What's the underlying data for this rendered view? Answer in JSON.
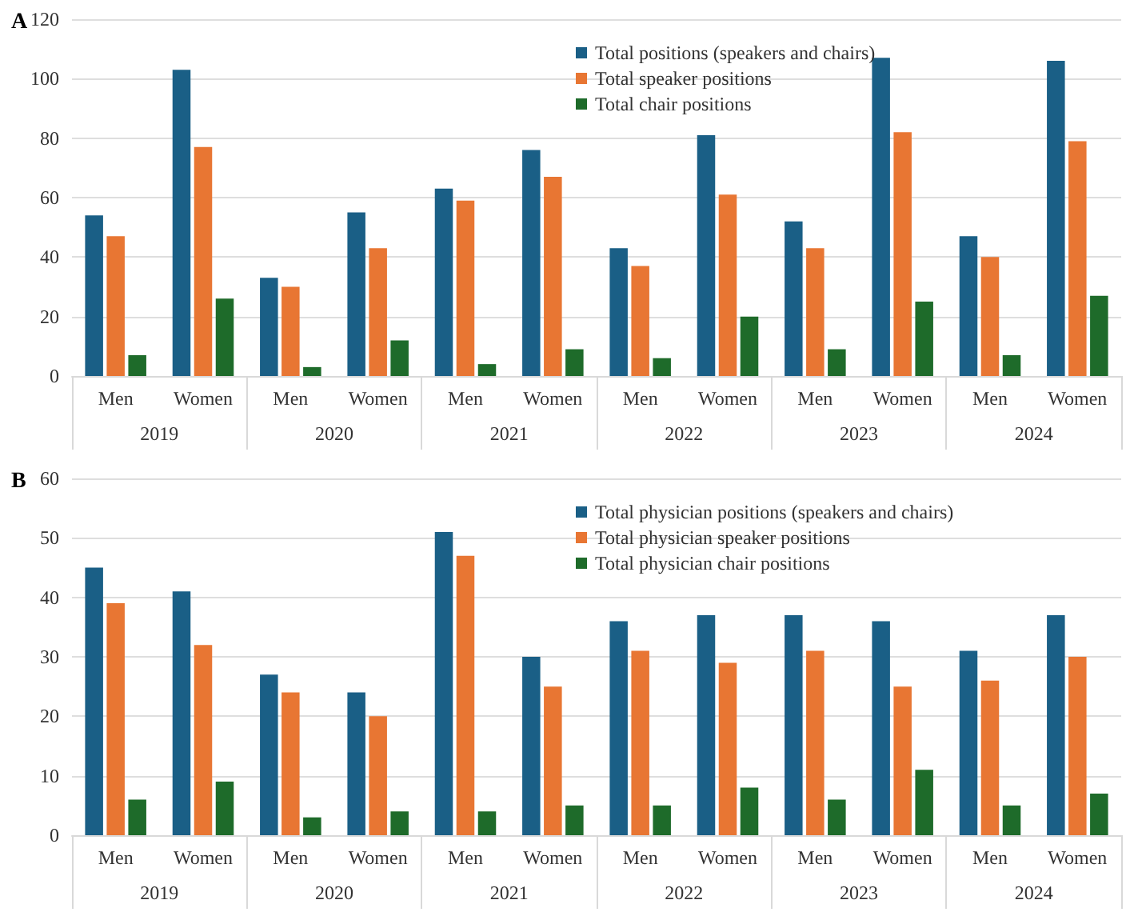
{
  "chart_data": [
    {
      "type": "bar",
      "title": "A",
      "categories": [
        "Men",
        "Women",
        "Men",
        "Women",
        "Men",
        "Women",
        "Men",
        "Women",
        "Men",
        "Women",
        "Men",
        "Women"
      ],
      "series": [
        {
          "name": "Total positions (speakers and chairs)",
          "color": "#1a5f86",
          "values": [
            54,
            103,
            33,
            55,
            63,
            76,
            43,
            81,
            52,
            107,
            47,
            106
          ]
        },
        {
          "name": "Total speaker positions",
          "color": "#e87633",
          "values": [
            47,
            77,
            30,
            43,
            59,
            67,
            37,
            61,
            43,
            82,
            40,
            79
          ]
        },
        {
          "name": "Total chair positions",
          "color": "#1e6b2a",
          "values": [
            7,
            26,
            3,
            12,
            4,
            9,
            6,
            20,
            9,
            25,
            7,
            27
          ]
        }
      ],
      "annotations": [
        "2019",
        "2020",
        "2021",
        "2022",
        "2023",
        "2024"
      ],
      "ylim": [
        0,
        120
      ],
      "yticks": [
        0,
        20,
        40,
        60,
        80,
        100,
        120
      ],
      "grid": "y",
      "legend": "top"
    },
    {
      "type": "bar",
      "title": "B",
      "categories": [
        "Men",
        "Women",
        "Men",
        "Women",
        "Men",
        "Women",
        "Men",
        "Women",
        "Men",
        "Women",
        "Men",
        "Women"
      ],
      "series": [
        {
          "name": "Total physician positions (speakers and chairs)",
          "color": "#1a5f86",
          "values": [
            45,
            41,
            27,
            24,
            51,
            30,
            36,
            37,
            37,
            36,
            31,
            37
          ]
        },
        {
          "name": "Total physician speaker positions",
          "color": "#e87633",
          "values": [
            39,
            32,
            24,
            20,
            47,
            25,
            31,
            29,
            31,
            25,
            26,
            30
          ]
        },
        {
          "name": "Total physician chair positions",
          "color": "#1e6b2a",
          "values": [
            6,
            9,
            3,
            4,
            4,
            5,
            5,
            8,
            6,
            11,
            5,
            7
          ]
        }
      ],
      "annotations": [
        "2019",
        "2020",
        "2021",
        "2022",
        "2023",
        "2024"
      ],
      "ylim": [
        0,
        60
      ],
      "yticks": [
        0,
        10,
        20,
        30,
        40,
        50,
        60
      ],
      "grid": "y",
      "legend": "top"
    }
  ]
}
